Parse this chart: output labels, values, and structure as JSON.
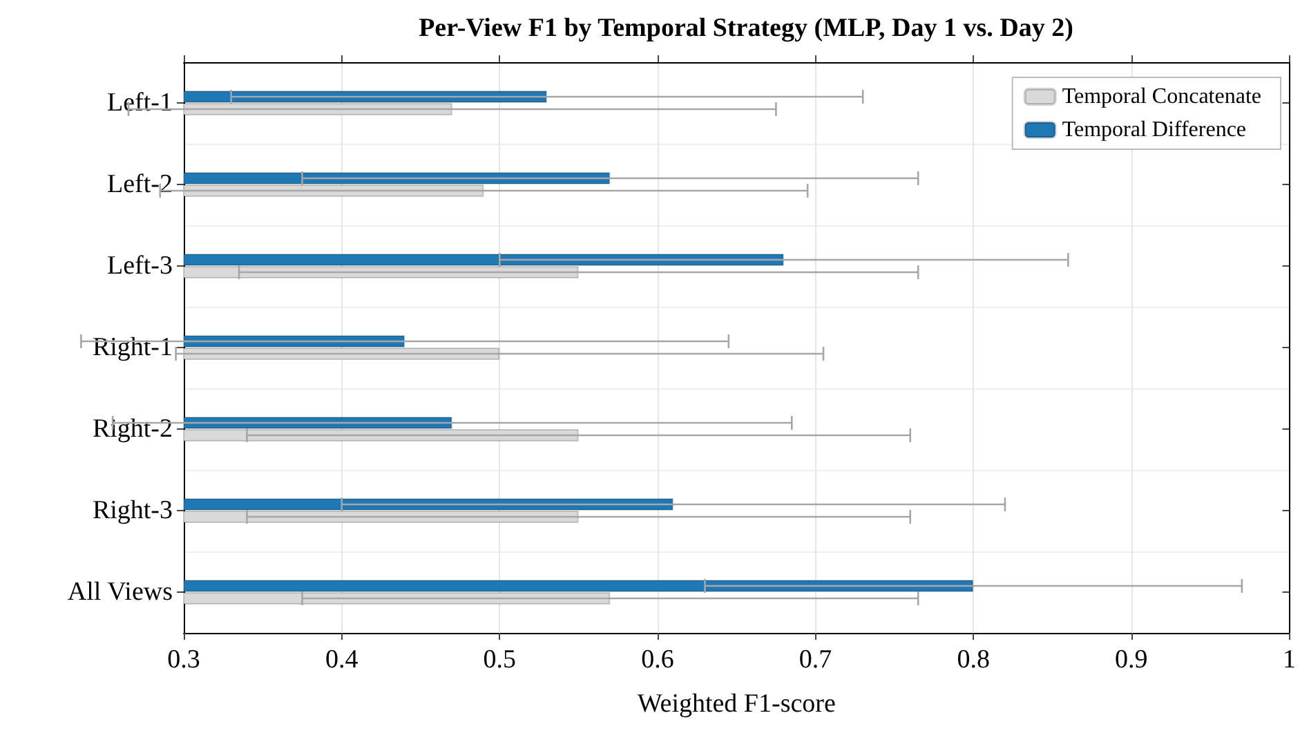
{
  "chart_data": {
    "type": "bar",
    "orientation": "horizontal",
    "title": "Per-View F1 by Temporal Strategy (MLP, Day 1 vs. Day 2)",
    "xlabel": "Weighted F1-score",
    "categories": [
      "Left-1",
      "Left-2",
      "Left-3",
      "Right-1",
      "Right-2",
      "Right-3",
      "All Views"
    ],
    "series": [
      {
        "name": "Temporal Concatenate",
        "color": "#d9d9d9",
        "values": [
          0.47,
          0.49,
          0.55,
          0.5,
          0.55,
          0.55,
          0.57
        ],
        "errors": [
          0.205,
          0.205,
          0.215,
          0.205,
          0.21,
          0.21,
          0.195
        ]
      },
      {
        "name": "Temporal Difference",
        "color": "#1f77b4",
        "values": [
          0.53,
          0.57,
          0.68,
          0.44,
          0.47,
          0.61,
          0.8
        ],
        "errors": [
          0.2,
          0.195,
          0.18,
          0.205,
          0.215,
          0.21,
          0.17
        ]
      }
    ],
    "xlim": [
      0.3,
      1
    ],
    "xticks": [
      0.3,
      0.4,
      0.5,
      0.6,
      0.7,
      0.8,
      0.9,
      1
    ],
    "grid": true,
    "legend": "top right"
  }
}
